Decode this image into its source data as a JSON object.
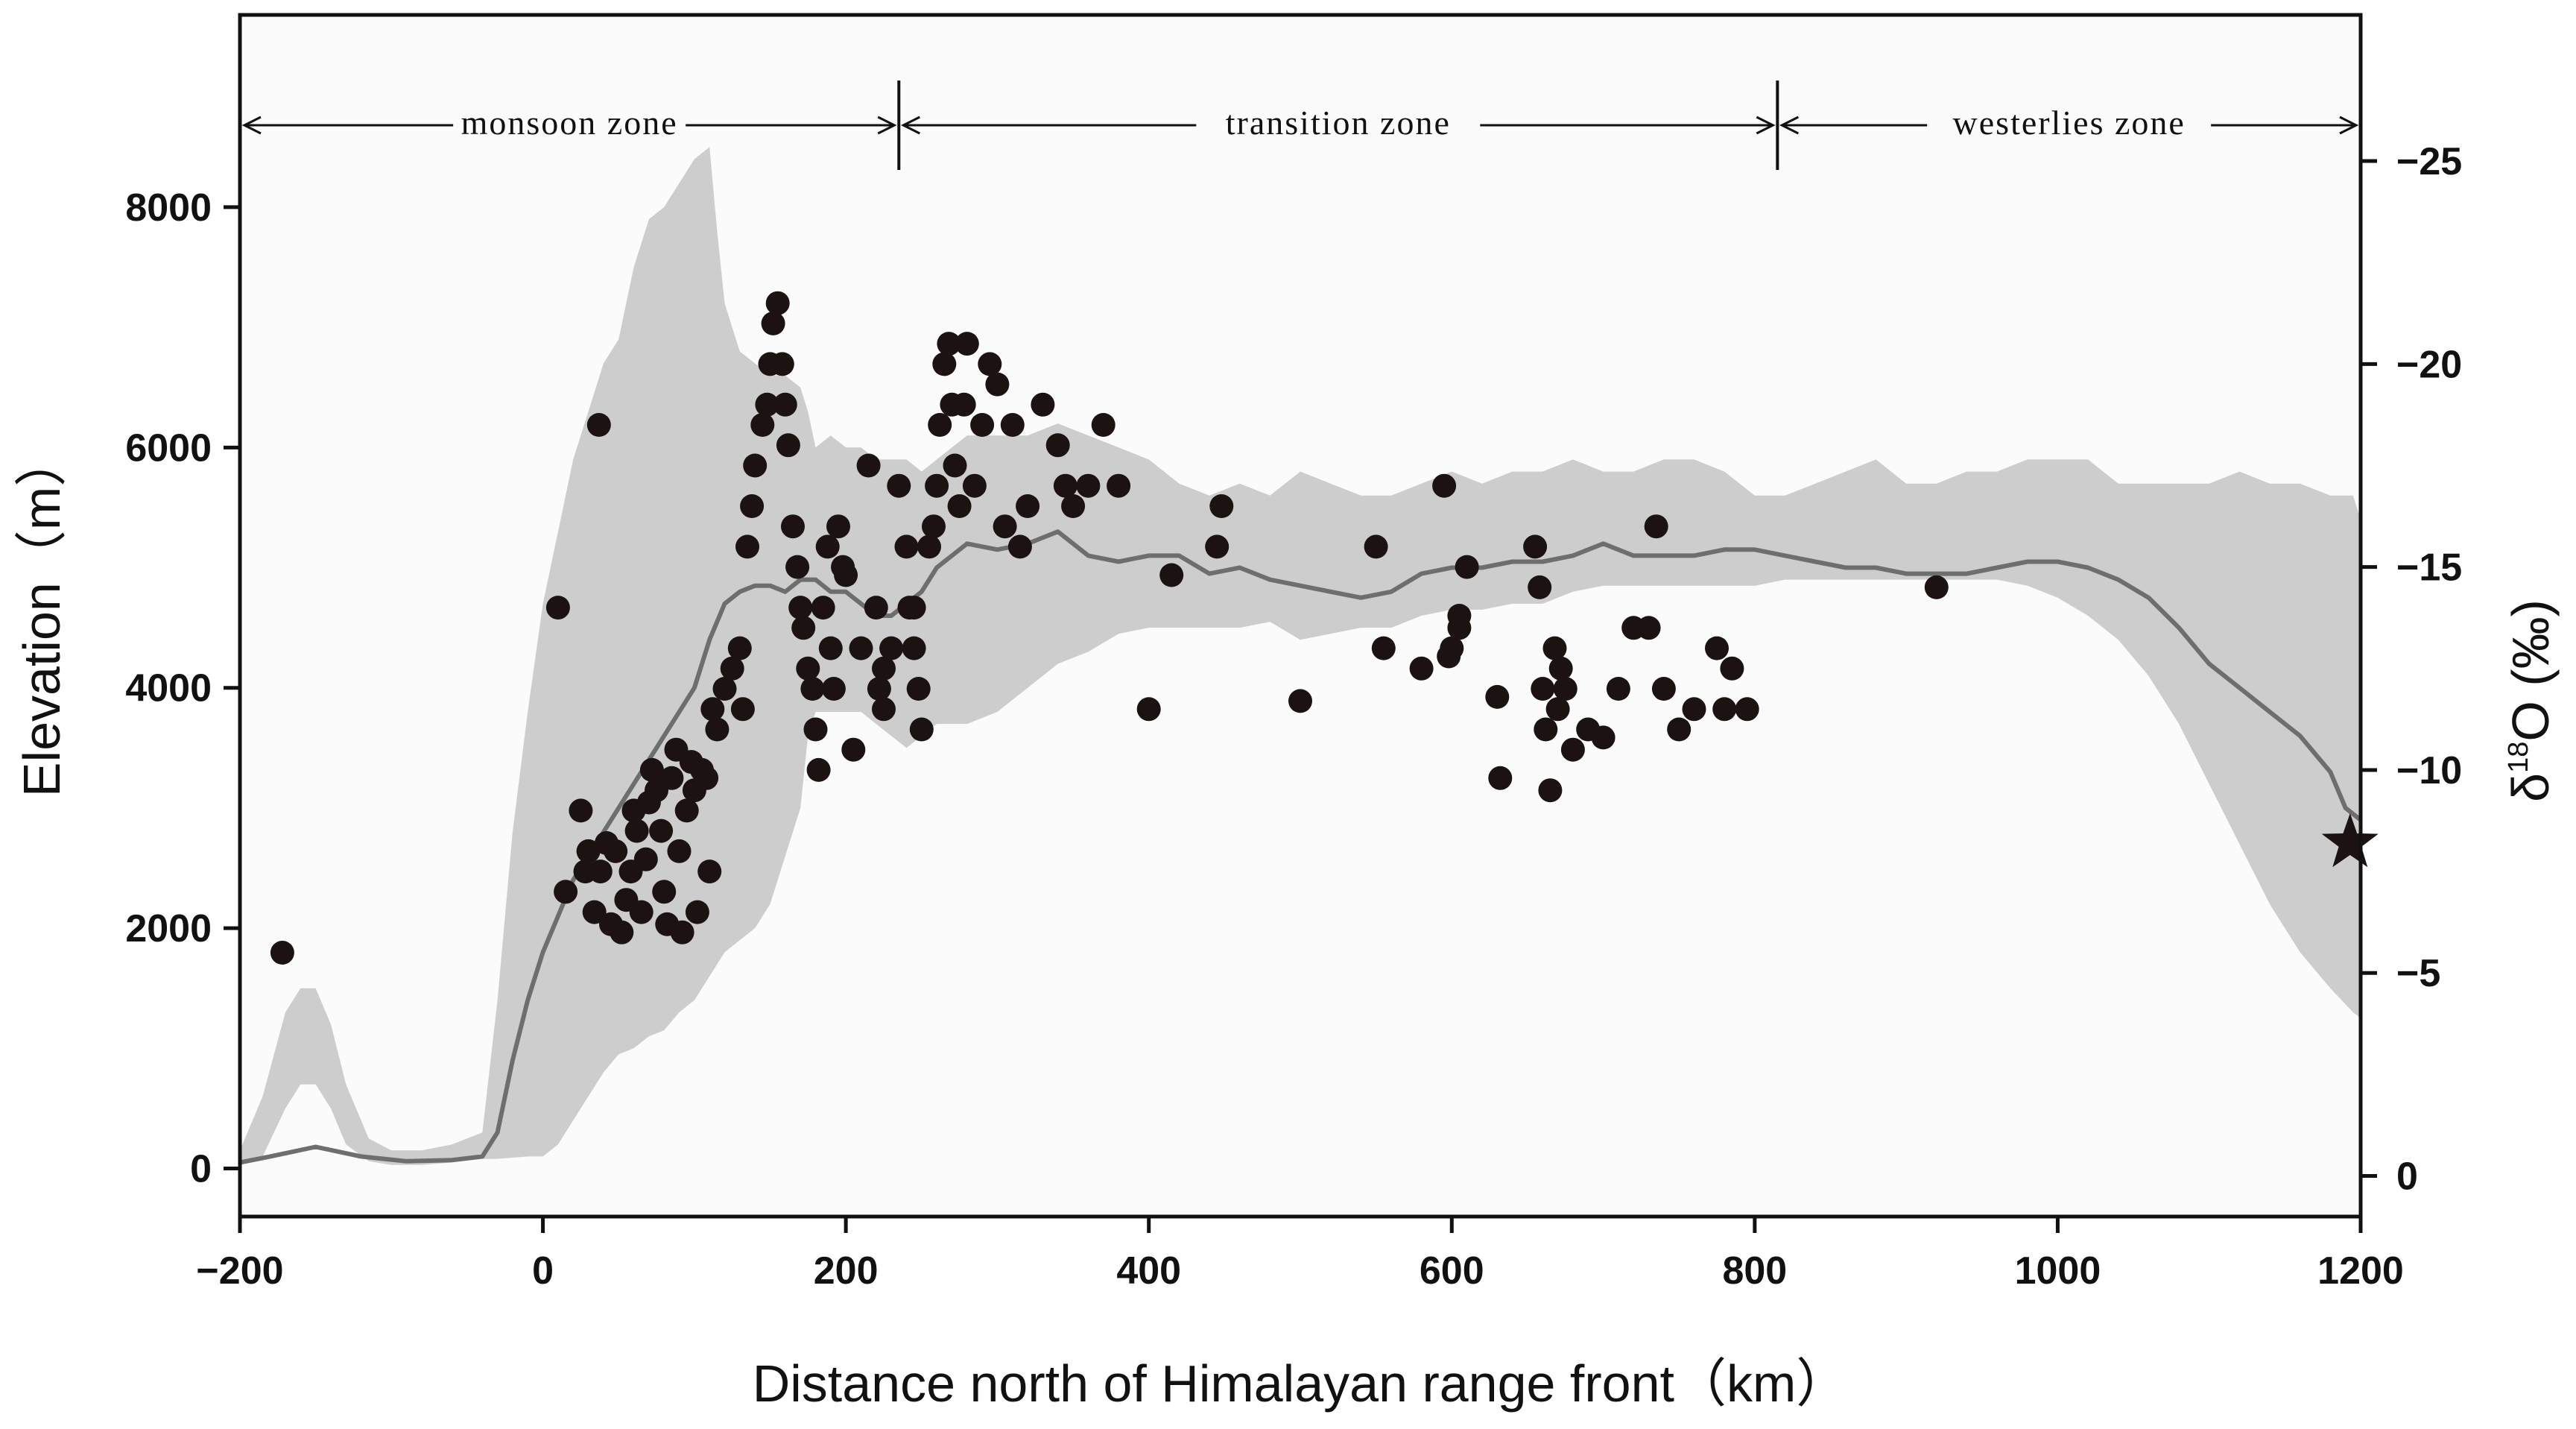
{
  "chart_data": {
    "type": "scatter",
    "title": "",
    "xlabel": "Distance north of Himalayan range front（km）",
    "ylabel_left": "Elevation（m）",
    "ylabel_right_main": "δ",
    "ylabel_right_sup": "18",
    "ylabel_right_tail": "O (‰)",
    "xlim": [
      -200,
      1200
    ],
    "ylim_left": [
      -400,
      9600
    ],
    "ylim_right": [
      1,
      -28.6
    ],
    "xticks": [
      -200,
      0,
      200,
      400,
      600,
      800,
      1000,
      1200
    ],
    "xtick_labels": [
      "−200",
      "0",
      "200",
      "400",
      "600",
      "800",
      "1000",
      "1200"
    ],
    "yticks_left": [
      0,
      2000,
      4000,
      6000,
      8000
    ],
    "ytick_labels_left": [
      "0",
      "2000",
      "4000",
      "6000",
      "8000"
    ],
    "yticks_right": [
      0,
      -5,
      -10,
      -15,
      -20,
      -25
    ],
    "ytick_labels_right": [
      "0",
      "−5",
      "−10",
      "−15",
      "−20",
      "−25"
    ],
    "zones": [
      {
        "label": "monsoon zone",
        "x_start": -200,
        "x_end": 235
      },
      {
        "label": "transition zone",
        "x_start": 235,
        "x_end": 815
      },
      {
        "label": "westerlies zone",
        "x_start": 815,
        "x_end": 1200
      }
    ],
    "elevation_max_envelope": {
      "x": [
        -200,
        -185,
        -170,
        -160,
        -150,
        -140,
        -130,
        -115,
        -100,
        -80,
        -60,
        -40,
        -30,
        -20,
        -10,
        0,
        10,
        20,
        30,
        40,
        50,
        60,
        70,
        80,
        90,
        100,
        110,
        115,
        120,
        130,
        140,
        150,
        160,
        170,
        175,
        180,
        190,
        200,
        210,
        220,
        230,
        240,
        250,
        260,
        280,
        300,
        320,
        340,
        360,
        380,
        400,
        420,
        440,
        460,
        480,
        500,
        520,
        540,
        560,
        580,
        600,
        620,
        640,
        660,
        680,
        700,
        720,
        740,
        760,
        780,
        800,
        820,
        840,
        860,
        880,
        900,
        920,
        940,
        960,
        980,
        1000,
        1020,
        1040,
        1060,
        1080,
        1100,
        1120,
        1140,
        1160,
        1180,
        1195,
        1200
      ],
      "y": [
        150,
        600,
        1300,
        1500,
        1500,
        1200,
        700,
        250,
        150,
        150,
        200,
        300,
        1400,
        2800,
        3800,
        4700,
        5300,
        5900,
        6300,
        6700,
        6900,
        7500,
        7900,
        8000,
        8200,
        8400,
        8500,
        7800,
        7200,
        6800,
        6700,
        6600,
        6600,
        6500,
        6300,
        6000,
        6100,
        6000,
        6000,
        5900,
        5900,
        5900,
        5800,
        5900,
        6100,
        6100,
        6100,
        6200,
        6100,
        6000,
        5900,
        5700,
        5600,
        5700,
        5600,
        5800,
        5700,
        5600,
        5600,
        5700,
        5800,
        5700,
        5800,
        5800,
        5900,
        5800,
        5800,
        5900,
        5900,
        5800,
        5600,
        5600,
        5700,
        5800,
        5900,
        5700,
        5700,
        5800,
        5800,
        5900,
        5900,
        5900,
        5700,
        5700,
        5700,
        5700,
        5800,
        5700,
        5700,
        5600,
        5600,
        5400
      ]
    },
    "elevation_min_envelope": {
      "x": [
        -200,
        -185,
        -170,
        -160,
        -150,
        -140,
        -130,
        -115,
        -100,
        -80,
        -60,
        -40,
        -30,
        -20,
        -10,
        0,
        10,
        20,
        30,
        40,
        50,
        60,
        70,
        80,
        90,
        100,
        110,
        115,
        120,
        130,
        140,
        150,
        160,
        170,
        175,
        180,
        190,
        200,
        210,
        220,
        230,
        240,
        250,
        260,
        280,
        300,
        320,
        340,
        360,
        380,
        400,
        420,
        440,
        460,
        480,
        500,
        520,
        540,
        560,
        580,
        600,
        620,
        640,
        660,
        680,
        700,
        720,
        740,
        760,
        780,
        800,
        820,
        840,
        860,
        880,
        900,
        920,
        940,
        960,
        980,
        1000,
        1020,
        1040,
        1060,
        1080,
        1100,
        1120,
        1140,
        1160,
        1180,
        1195,
        1200
      ],
      "y": [
        30,
        100,
        500,
        700,
        700,
        500,
        200,
        60,
        30,
        30,
        50,
        80,
        80,
        90,
        100,
        100,
        200,
        400,
        600,
        800,
        950,
        1000,
        1100,
        1150,
        1300,
        1400,
        1600,
        1700,
        1800,
        1900,
        2000,
        2200,
        2600,
        3000,
        3600,
        3800,
        3800,
        3800,
        3800,
        3700,
        3600,
        3500,
        3600,
        3700,
        3700,
        3800,
        4000,
        4200,
        4300,
        4450,
        4500,
        4500,
        4500,
        4500,
        4550,
        4400,
        4450,
        4500,
        4500,
        4600,
        4650,
        4650,
        4700,
        4700,
        4800,
        4850,
        4850,
        4850,
        4850,
        4850,
        4850,
        4900,
        4900,
        4900,
        4900,
        4900,
        4900,
        4900,
        4900,
        4850,
        4750,
        4600,
        4400,
        4100,
        3700,
        3200,
        2700,
        2200,
        1800,
        1500,
        1300,
        1250
      ]
    },
    "mean_elevation": {
      "x": [
        -200,
        -180,
        -150,
        -120,
        -90,
        -60,
        -40,
        -30,
        -20,
        -10,
        0,
        10,
        20,
        40,
        60,
        80,
        100,
        110,
        120,
        130,
        140,
        150,
        160,
        170,
        180,
        190,
        200,
        210,
        220,
        230,
        240,
        250,
        260,
        280,
        300,
        320,
        340,
        360,
        380,
        400,
        420,
        440,
        460,
        480,
        500,
        520,
        540,
        560,
        580,
        600,
        620,
        640,
        660,
        680,
        700,
        720,
        740,
        760,
        780,
        800,
        820,
        840,
        860,
        880,
        900,
        920,
        940,
        960,
        980,
        1000,
        1020,
        1040,
        1060,
        1080,
        1100,
        1120,
        1140,
        1160,
        1180,
        1190,
        1200
      ],
      "y": [
        50,
        100,
        180,
        100,
        60,
        70,
        100,
        300,
        900,
        1400,
        1800,
        2100,
        2400,
        2800,
        3200,
        3600,
        4000,
        4400,
        4700,
        4800,
        4850,
        4850,
        4800,
        4900,
        4900,
        4800,
        4800,
        4700,
        4600,
        4600,
        4700,
        4800,
        5000,
        5200,
        5150,
        5200,
        5300,
        5100,
        5050,
        5100,
        5100,
        4950,
        5000,
        4900,
        4850,
        4800,
        4750,
        4800,
        4950,
        5000,
        5000,
        5050,
        5050,
        5100,
        5200,
        5100,
        5100,
        5100,
        5150,
        5150,
        5100,
        5050,
        5000,
        5000,
        4950,
        4950,
        4950,
        5000,
        5050,
        5050,
        5000,
        4900,
        4750,
        4500,
        4200,
        4000,
        3800,
        3600,
        3300,
        3000,
        2900
      ]
    },
    "isotope_samples": {
      "x": [
        -172,
        10,
        37,
        15,
        25,
        28,
        30,
        34,
        38,
        42,
        45,
        48,
        52,
        55,
        58,
        60,
        62,
        65,
        68,
        70,
        72,
        75,
        78,
        80,
        82,
        85,
        88,
        90,
        92,
        95,
        98,
        100,
        102,
        105,
        108,
        110,
        112,
        115,
        120,
        125,
        130,
        132,
        135,
        138,
        140,
        145,
        148,
        150,
        152,
        155,
        158,
        160,
        162,
        165,
        168,
        170,
        172,
        175,
        178,
        180,
        182,
        185,
        188,
        190,
        192,
        195,
        198,
        200,
        205,
        210,
        215,
        220,
        225,
        230,
        235,
        240,
        242,
        245,
        248,
        250,
        255,
        258,
        260,
        262,
        265,
        268,
        270,
        272,
        275,
        278,
        280,
        285,
        290,
        295,
        300,
        305,
        310,
        315,
        320,
        330,
        340,
        345,
        350,
        360,
        370,
        380,
        400,
        415,
        445,
        448,
        500,
        550,
        555,
        580,
        595,
        598,
        600,
        605,
        610,
        630,
        632,
        655,
        658,
        660,
        662,
        665,
        668,
        670,
        672,
        675,
        680,
        690,
        700,
        710,
        720,
        730,
        740,
        750,
        760,
        775,
        780,
        785,
        795,
        920,
        735,
        605,
        245,
        225,
        222
      ],
      "y": [
        -5.5,
        -14,
        -18.5,
        -7,
        -9,
        -7.5,
        -8,
        -6.5,
        -7.5,
        -8.2,
        -6.2,
        -8,
        -6,
        -6.8,
        -7.5,
        -9,
        -8.5,
        -6.5,
        -7.8,
        -9.2,
        -10,
        -9.5,
        -8.5,
        -7,
        -6.2,
        -9.8,
        -10.5,
        -8,
        -6,
        -9,
        -10.2,
        -9.5,
        -6.5,
        -10,
        -9.8,
        -7.5,
        -11.5,
        -11,
        -12,
        -12.5,
        -13,
        -11.5,
        -15.5,
        -16.5,
        -17.5,
        -18.5,
        -19,
        -20,
        -21,
        -21.5,
        -20,
        -19,
        -18,
        -16,
        -15,
        -14,
        -13.5,
        -12.5,
        -12,
        -11,
        -10,
        -14,
        -15.5,
        -13,
        -12,
        -16,
        -15,
        -14.8,
        -10.5,
        -13,
        -17.5,
        -14,
        -12.5,
        -13,
        -17,
        -15.5,
        -14,
        -13,
        -12,
        -11,
        -15.5,
        -16,
        -17,
        -18.5,
        -20,
        -20.5,
        -19,
        -17.5,
        -16.5,
        -19,
        -20.5,
        -17,
        -18.5,
        -20,
        -19.5,
        -16,
        -18.5,
        -15.5,
        -16.5,
        -19,
        -18,
        -17,
        -16.5,
        -17,
        -18.5,
        -17,
        -11.5,
        -14.8,
        -15.5,
        -16.5,
        -11.7,
        -15.5,
        -13,
        -12.5,
        -17,
        -12.8,
        -13,
        -13.8,
        -15,
        -11.8,
        -9.8,
        -15.5,
        -14.5,
        -12,
        -11,
        -9.5,
        -13,
        -11.5,
        -12.5,
        -12,
        -10.5,
        -11,
        -10.8,
        -12,
        -13.5,
        -13.5,
        -12,
        -11,
        -11.5,
        -13,
        -11.5,
        -12.5,
        -11.5,
        -14.5,
        -16,
        -13.5,
        -14,
        -11.5,
        -12
      ]
    },
    "star_marker": {
      "x": 1193,
      "y": -8.2
    }
  }
}
